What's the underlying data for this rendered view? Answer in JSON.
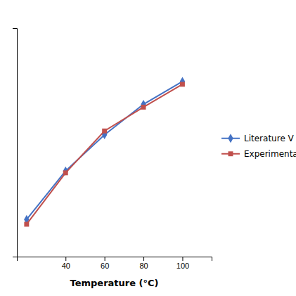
{
  "chart_data": {
    "type": "line",
    "xlabel": "Temperature (°C)",
    "x": [
      20,
      40,
      60,
      80,
      100
    ],
    "series": [
      {
        "name": "Literature V",
        "color": "#4472C4",
        "marker": "diamond",
        "line_style": "solid",
        "values": [
          74.5,
          100.0,
          119.0,
          135.0,
          147.0
        ]
      },
      {
        "name": "Experimental",
        "color": "#C0504D",
        "marker": "square",
        "line_style": "solid",
        "values": [
          72.0,
          99.0,
          121.0,
          133.5,
          145.5
        ]
      }
    ],
    "xlim": [
      15,
      115
    ],
    "xticks": [
      40,
      60,
      80,
      100
    ],
    "ylim": [
      55,
      175
    ],
    "tick_labels": "x",
    "grid": false,
    "legend": "right"
  }
}
